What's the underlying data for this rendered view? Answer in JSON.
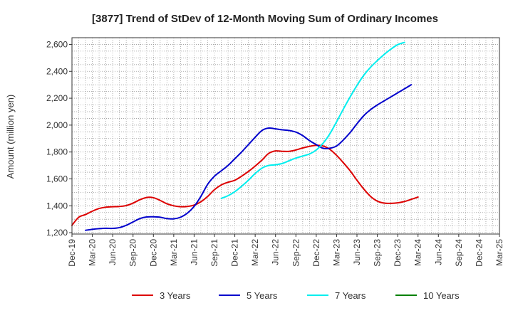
{
  "chart_data": {
    "type": "line",
    "title": "[3877]  Trend of StDev of 12-Month Moving Sum of Ordinary Incomes",
    "xlabel": "",
    "ylabel": "Amount (million yen)",
    "ylim": [
      1190,
      2650
    ],
    "y_ticks": [
      1200,
      1400,
      1600,
      1800,
      2000,
      2200,
      2400,
      2600
    ],
    "y_tick_labels": [
      "1,200",
      "1,400",
      "1,600",
      "1,800",
      "2,000",
      "2,200",
      "2,400",
      "2,600"
    ],
    "x_ticks": [
      "Dec-19",
      "Mar-20",
      "Jun-20",
      "Sep-20",
      "Dec-20",
      "Mar-21",
      "Jun-21",
      "Sep-21",
      "Dec-21",
      "Mar-22",
      "Jun-22",
      "Sep-22",
      "Dec-22",
      "Mar-23",
      "Jun-23",
      "Sep-23",
      "Dec-23",
      "Mar-24",
      "Jun-24",
      "Sep-24",
      "Dec-24",
      "Mar-25"
    ],
    "grid": true,
    "legend_position": "bottom",
    "series": [
      {
        "name": "3 Years",
        "color": "#dd0000",
        "points": [
          [
            0,
            1255
          ],
          [
            1,
            1315
          ],
          [
            2,
            1335
          ],
          [
            3,
            1360
          ],
          [
            4,
            1380
          ],
          [
            5,
            1390
          ],
          [
            6,
            1393
          ],
          [
            7,
            1395
          ],
          [
            8,
            1402
          ],
          [
            9,
            1420
          ],
          [
            10,
            1445
          ],
          [
            11,
            1462
          ],
          [
            12,
            1460
          ],
          [
            13,
            1440
          ],
          [
            14,
            1415
          ],
          [
            15,
            1400
          ],
          [
            16,
            1393
          ],
          [
            17,
            1395
          ],
          [
            18,
            1405
          ],
          [
            19,
            1430
          ],
          [
            20,
            1470
          ],
          [
            21,
            1520
          ],
          [
            22,
            1555
          ],
          [
            23,
            1575
          ],
          [
            24,
            1590
          ],
          [
            25,
            1620
          ],
          [
            26,
            1655
          ],
          [
            27,
            1695
          ],
          [
            28,
            1740
          ],
          [
            29,
            1790
          ],
          [
            30,
            1808
          ],
          [
            31,
            1805
          ],
          [
            32,
            1805
          ],
          [
            33,
            1815
          ],
          [
            34,
            1830
          ],
          [
            35,
            1842
          ],
          [
            36,
            1850
          ],
          [
            37,
            1845
          ],
          [
            38,
            1820
          ],
          [
            39,
            1775
          ],
          [
            40,
            1720
          ],
          [
            41,
            1660
          ],
          [
            42,
            1590
          ],
          [
            43,
            1525
          ],
          [
            44,
            1470
          ],
          [
            45,
            1435
          ],
          [
            46,
            1420
          ],
          [
            47,
            1418
          ],
          [
            48,
            1422
          ],
          [
            49,
            1432
          ],
          [
            50,
            1448
          ],
          [
            51,
            1465
          ]
        ]
      },
      {
        "name": "5 Years",
        "color": "#0000cc",
        "points": [
          [
            2,
            1218
          ],
          [
            3,
            1225
          ],
          [
            4,
            1230
          ],
          [
            5,
            1233
          ],
          [
            6,
            1232
          ],
          [
            7,
            1238
          ],
          [
            8,
            1255
          ],
          [
            9,
            1280
          ],
          [
            10,
            1305
          ],
          [
            11,
            1317
          ],
          [
            12,
            1318
          ],
          [
            13,
            1315
          ],
          [
            14,
            1305
          ],
          [
            15,
            1303
          ],
          [
            16,
            1315
          ],
          [
            17,
            1345
          ],
          [
            18,
            1395
          ],
          [
            19,
            1470
          ],
          [
            20,
            1560
          ],
          [
            21,
            1620
          ],
          [
            22,
            1660
          ],
          [
            23,
            1700
          ],
          [
            24,
            1750
          ],
          [
            25,
            1800
          ],
          [
            26,
            1855
          ],
          [
            27,
            1910
          ],
          [
            28,
            1960
          ],
          [
            29,
            1978
          ],
          [
            30,
            1972
          ],
          [
            31,
            1965
          ],
          [
            32,
            1960
          ],
          [
            33,
            1948
          ],
          [
            34,
            1922
          ],
          [
            35,
            1885
          ],
          [
            36,
            1855
          ],
          [
            37,
            1828
          ],
          [
            38,
            1828
          ],
          [
            39,
            1845
          ],
          [
            40,
            1890
          ],
          [
            41,
            1945
          ],
          [
            42,
            2010
          ],
          [
            43,
            2070
          ],
          [
            44,
            2115
          ],
          [
            45,
            2150
          ],
          [
            46,
            2180
          ],
          [
            47,
            2210
          ],
          [
            48,
            2240
          ],
          [
            49,
            2270
          ],
          [
            50,
            2300
          ]
        ]
      },
      {
        "name": "7 Years",
        "color": "#00eeee",
        "points": [
          [
            22,
            1455
          ],
          [
            23,
            1475
          ],
          [
            24,
            1505
          ],
          [
            25,
            1545
          ],
          [
            26,
            1590
          ],
          [
            27,
            1640
          ],
          [
            28,
            1680
          ],
          [
            29,
            1700
          ],
          [
            30,
            1705
          ],
          [
            31,
            1715
          ],
          [
            32,
            1735
          ],
          [
            33,
            1755
          ],
          [
            34,
            1770
          ],
          [
            35,
            1785
          ],
          [
            36,
            1815
          ],
          [
            37,
            1865
          ],
          [
            38,
            1935
          ],
          [
            39,
            2025
          ],
          [
            40,
            2120
          ],
          [
            41,
            2210
          ],
          [
            42,
            2295
          ],
          [
            43,
            2370
          ],
          [
            44,
            2430
          ],
          [
            45,
            2480
          ],
          [
            46,
            2525
          ],
          [
            47,
            2565
          ],
          [
            48,
            2598
          ],
          [
            49,
            2615
          ]
        ]
      },
      {
        "name": "10 Years",
        "color": "#008000",
        "points": []
      }
    ]
  }
}
